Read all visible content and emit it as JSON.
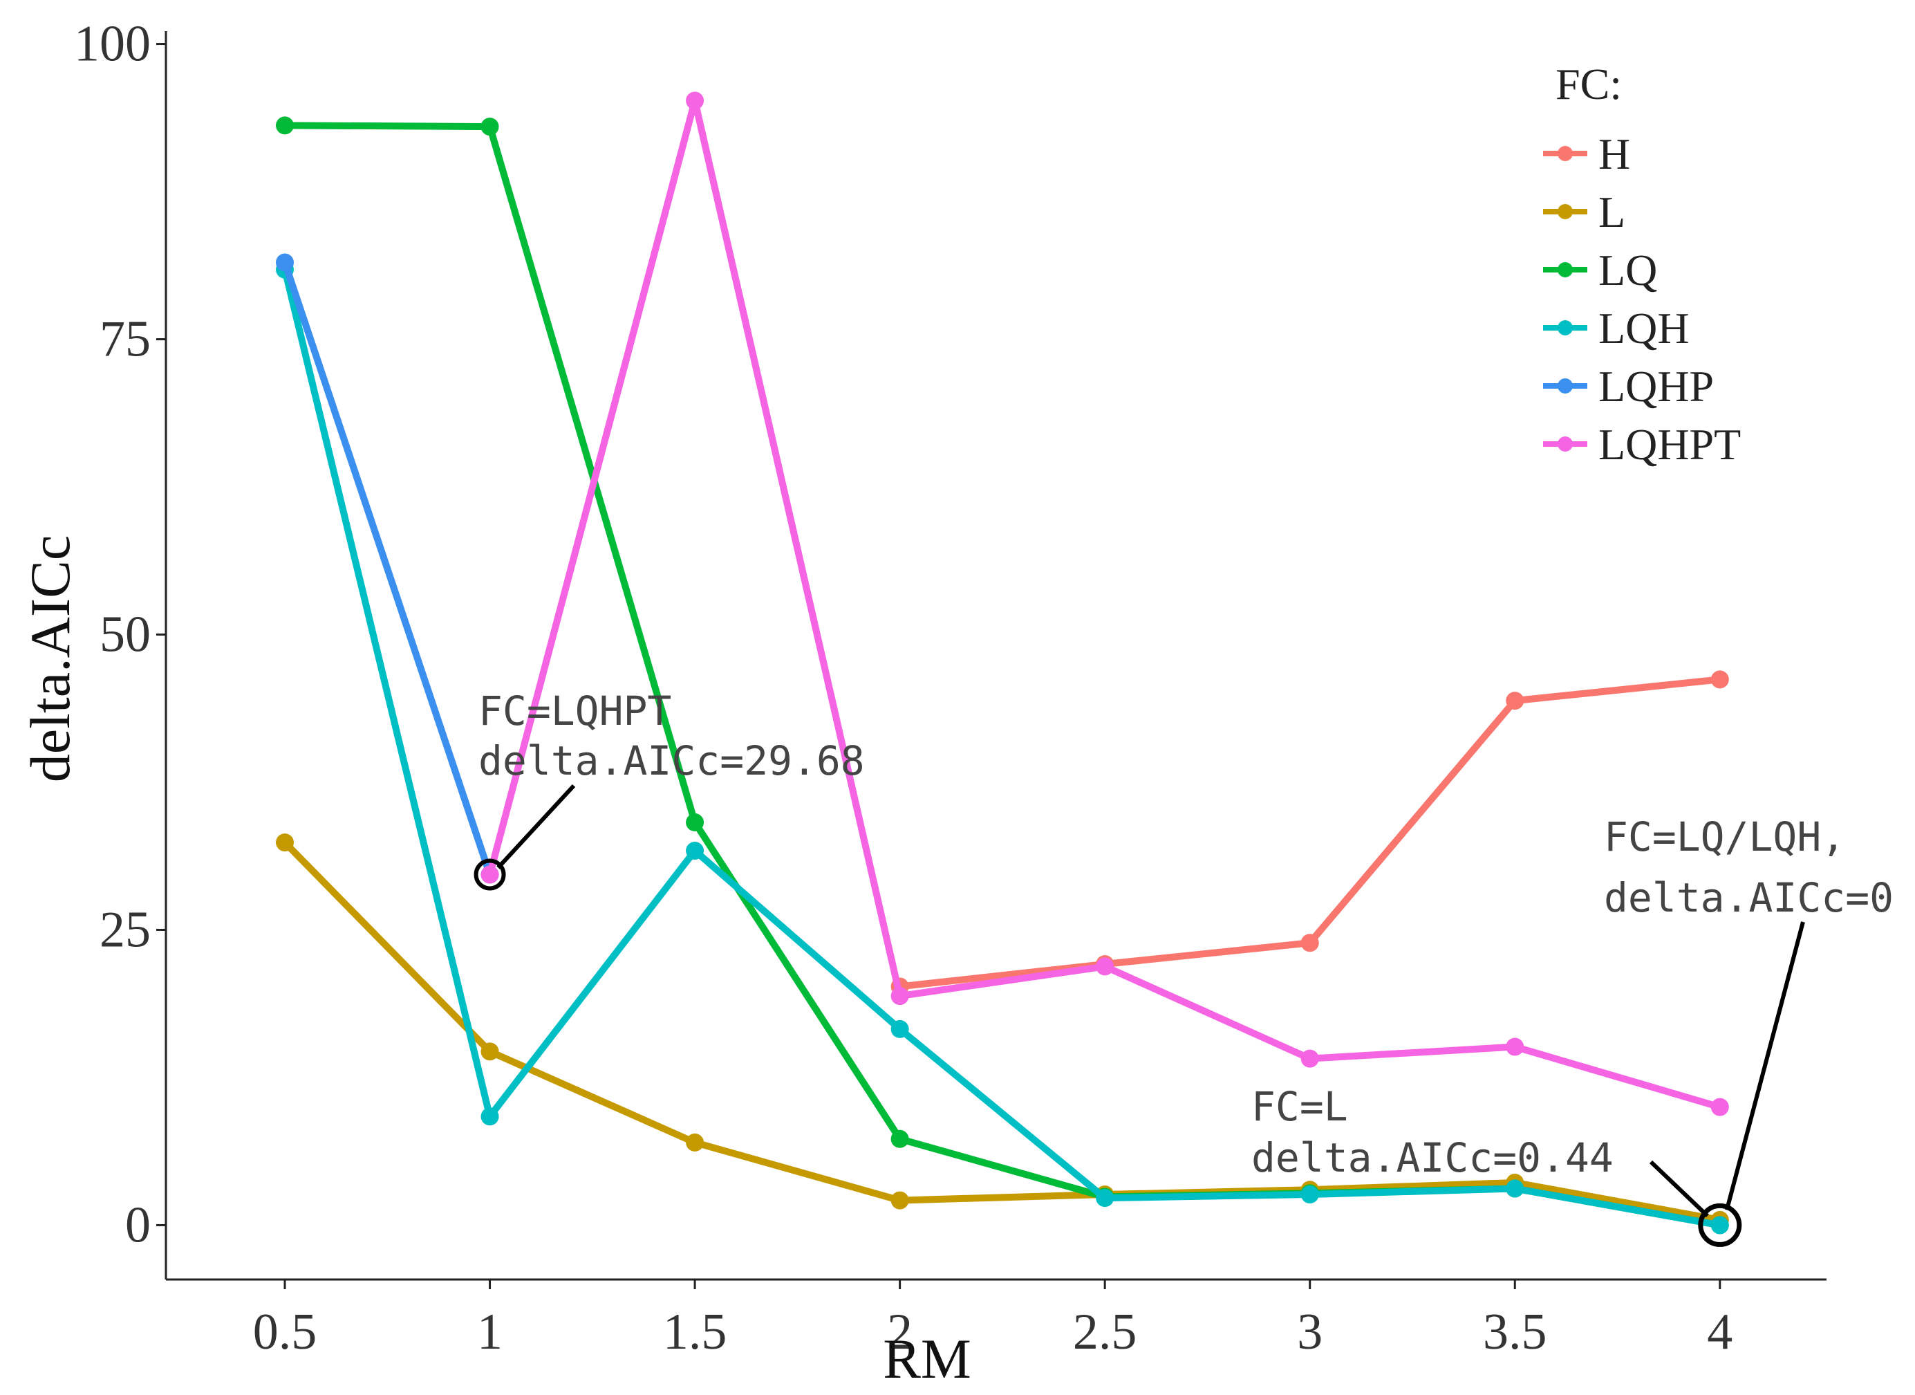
{
  "chart_data": {
    "type": "line",
    "title": "",
    "xlabel": "RM",
    "ylabel": "delta.AICc",
    "x": [
      0.5,
      1,
      1.5,
      2,
      2.5,
      3,
      3.5,
      4
    ],
    "x_tick_labels": [
      "0.5",
      "1",
      "1.5",
      "2",
      "2.5",
      "3",
      "3.5",
      "4"
    ],
    "xlim": [
      0.21,
      4.26
    ],
    "y_ticks": [
      0,
      25,
      50,
      75,
      100
    ],
    "y_tick_labels": [
      "0",
      "25",
      "50",
      "75",
      "100"
    ],
    "ylim": [
      -4.6,
      100.5
    ],
    "grid": false,
    "legend": {
      "title": "FC:",
      "placement": "top-right"
    },
    "series": [
      {
        "name": "H",
        "color": "#F8766D",
        "values": [
          null,
          null,
          null,
          20.2,
          22.1,
          23.9,
          44.4,
          46.2
        ]
      },
      {
        "name": "L",
        "color": "#C49A00",
        "values": [
          32.4,
          14.7,
          7.0,
          2.1,
          2.6,
          3.0,
          3.6,
          0.44
        ]
      },
      {
        "name": "LQ",
        "color": "#00BA38",
        "values": [
          93.1,
          93.0,
          34.1,
          7.3,
          2.4,
          2.7,
          3.1,
          0.0
        ]
      },
      {
        "name": "LQH",
        "color": "#00BFC4",
        "values": [
          80.9,
          9.2,
          31.7,
          16.6,
          2.3,
          2.6,
          3.1,
          0.0
        ]
      },
      {
        "name": "LQHP",
        "color": "#3B8FEE",
        "values": [
          81.5,
          29.68,
          null,
          null,
          null,
          null,
          null,
          null
        ]
      },
      {
        "name": "LQHPT",
        "color": "#F564E3",
        "values": [
          null,
          29.68,
          95.2,
          19.4,
          21.9,
          14.1,
          15.1,
          10.0
        ]
      }
    ],
    "annotations": [
      {
        "id": "a1",
        "lines": [
          "FC=LQHPT",
          "delta.AICc=29.68"
        ],
        "target_x": 1,
        "target_y": 29.68
      },
      {
        "id": "a2",
        "lines": [
          "FC=LQ/LQH,",
          "delta.AICc=0"
        ],
        "target_x": 4,
        "target_y": 0
      },
      {
        "id": "a3",
        "lines": [
          "FC=L",
          "delta.AICc=0.44"
        ],
        "target_x": 4,
        "target_y": 0.44
      }
    ]
  }
}
